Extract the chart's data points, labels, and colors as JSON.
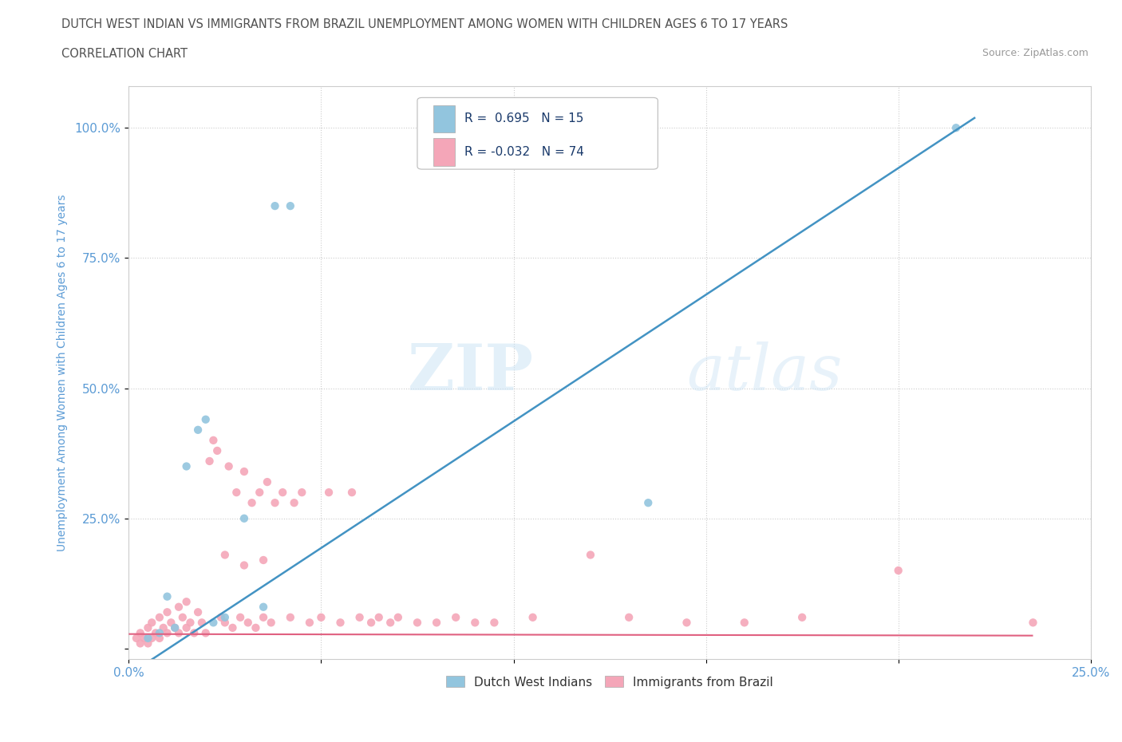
{
  "title_line1": "DUTCH WEST INDIAN VS IMMIGRANTS FROM BRAZIL UNEMPLOYMENT AMONG WOMEN WITH CHILDREN AGES 6 TO 17 YEARS",
  "title_line2": "CORRELATION CHART",
  "source_text": "Source: ZipAtlas.com",
  "ylabel": "Unemployment Among Women with Children Ages 6 to 17 years",
  "xlim": [
    0.0,
    0.25
  ],
  "ylim": [
    -0.02,
    1.08
  ],
  "watermark_zip": "ZIP",
  "watermark_atlas": "atlas",
  "legend_r1": "R =  0.695   N = 15",
  "legend_r2": "R = -0.032   N = 74",
  "color_blue": "#92c5de",
  "color_pink": "#f4a6b8",
  "color_blue_line": "#4393c3",
  "color_pink_line": "#e06080",
  "dutch_x": [
    0.005,
    0.008,
    0.01,
    0.012,
    0.015,
    0.018,
    0.02,
    0.022,
    0.025,
    0.03,
    0.035,
    0.038,
    0.042,
    0.135,
    0.215
  ],
  "dutch_y": [
    0.02,
    0.03,
    0.1,
    0.04,
    0.35,
    0.42,
    0.44,
    0.05,
    0.06,
    0.25,
    0.08,
    0.85,
    0.85,
    0.28,
    1.0
  ],
  "brazil_x": [
    0.002,
    0.003,
    0.003,
    0.004,
    0.005,
    0.005,
    0.006,
    0.006,
    0.007,
    0.008,
    0.008,
    0.009,
    0.01,
    0.01,
    0.011,
    0.012,
    0.013,
    0.013,
    0.014,
    0.015,
    0.015,
    0.016,
    0.017,
    0.018,
    0.019,
    0.02,
    0.021,
    0.022,
    0.023,
    0.024,
    0.025,
    0.026,
    0.027,
    0.028,
    0.029,
    0.03,
    0.031,
    0.032,
    0.033,
    0.034,
    0.035,
    0.036,
    0.037,
    0.038,
    0.04,
    0.042,
    0.043,
    0.045,
    0.047,
    0.05,
    0.052,
    0.055,
    0.058,
    0.06,
    0.063,
    0.065,
    0.068,
    0.07,
    0.075,
    0.08,
    0.085,
    0.09,
    0.095,
    0.105,
    0.12,
    0.13,
    0.145,
    0.16,
    0.175,
    0.2,
    0.235,
    0.025,
    0.03,
    0.035
  ],
  "brazil_y": [
    0.02,
    0.01,
    0.03,
    0.02,
    0.01,
    0.04,
    0.02,
    0.05,
    0.03,
    0.02,
    0.06,
    0.04,
    0.03,
    0.07,
    0.05,
    0.04,
    0.03,
    0.08,
    0.06,
    0.04,
    0.09,
    0.05,
    0.03,
    0.07,
    0.05,
    0.03,
    0.36,
    0.4,
    0.38,
    0.06,
    0.05,
    0.35,
    0.04,
    0.3,
    0.06,
    0.34,
    0.05,
    0.28,
    0.04,
    0.3,
    0.06,
    0.32,
    0.05,
    0.28,
    0.3,
    0.06,
    0.28,
    0.3,
    0.05,
    0.06,
    0.3,
    0.05,
    0.3,
    0.06,
    0.05,
    0.06,
    0.05,
    0.06,
    0.05,
    0.05,
    0.06,
    0.05,
    0.05,
    0.06,
    0.18,
    0.06,
    0.05,
    0.05,
    0.06,
    0.15,
    0.05,
    0.18,
    0.16,
    0.17
  ],
  "blue_line_x": [
    0.0,
    0.22
  ],
  "blue_line_y": [
    -0.05,
    1.02
  ],
  "pink_line_x": [
    0.0,
    0.235
  ],
  "pink_line_y": [
    0.028,
    0.025
  ],
  "background_color": "#ffffff",
  "grid_color": "#cccccc",
  "title_color": "#505050",
  "axis_label_color": "#5b9bd5",
  "tick_label_color": "#5b9bd5"
}
